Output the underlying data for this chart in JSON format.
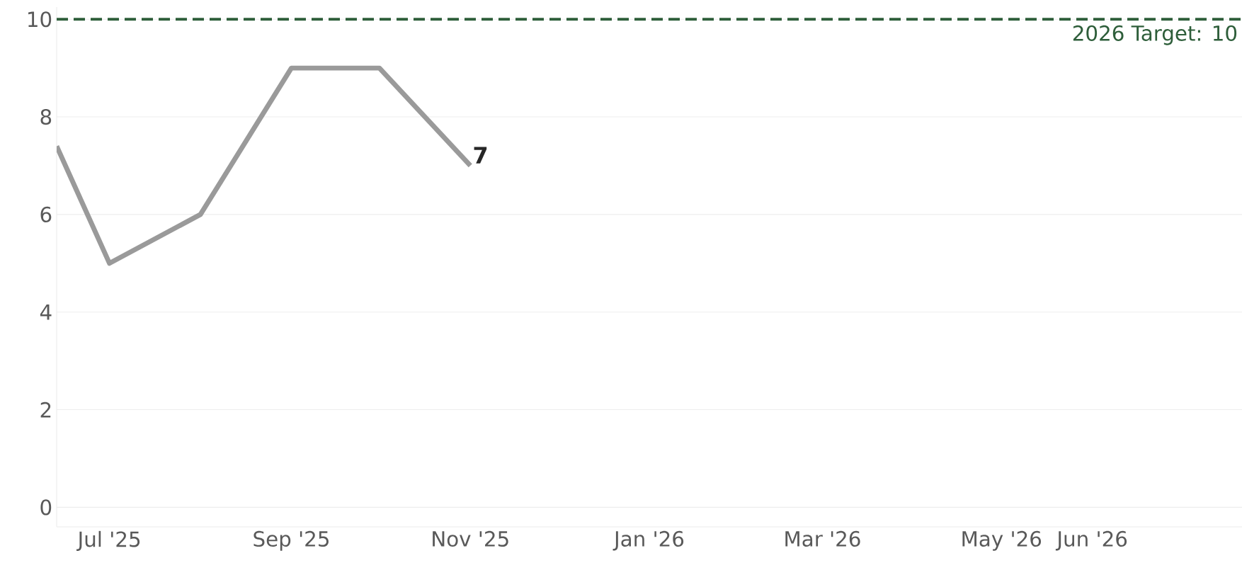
{
  "chart_data": {
    "type": "line",
    "x": [
      "2025-06-13",
      "2025-07",
      "2025-08",
      "2025-09",
      "2025-10",
      "2025-11"
    ],
    "series": [
      {
        "color": "#9a9a9a",
        "values": [
          7.4,
          5,
          6,
          9,
          9,
          7
        ],
        "value_labels": [
          null,
          null,
          null,
          null,
          null,
          "7"
        ]
      }
    ],
    "xlim": [
      "2025-06-13",
      "2026-07-22"
    ],
    "xticks": [
      {
        "value": "2025-07-01",
        "label": "Jul '25"
      },
      {
        "value": "2025-09-01",
        "label": "Sep '25"
      },
      {
        "value": "2025-11-01",
        "label": "Nov '25"
      },
      {
        "value": "2026-01-01",
        "label": "Jan '26"
      },
      {
        "value": "2026-03-01",
        "label": "Mar '26"
      },
      {
        "value": "2026-05-01",
        "label": "May '26"
      },
      {
        "value": "2026-06-01",
        "label": "Jun '26"
      }
    ],
    "ylim": [
      -0.4,
      10.25
    ],
    "yticks": [
      0,
      2,
      4,
      6,
      8,
      10
    ],
    "grid": "y",
    "legend": false,
    "marker": "none",
    "line_style": "solid",
    "ref_lines": [
      {
        "axis": "y",
        "value": 10,
        "label": "2026 Target: 10",
        "color": "#2e5e3a",
        "line_style": "dashed"
      }
    ]
  }
}
